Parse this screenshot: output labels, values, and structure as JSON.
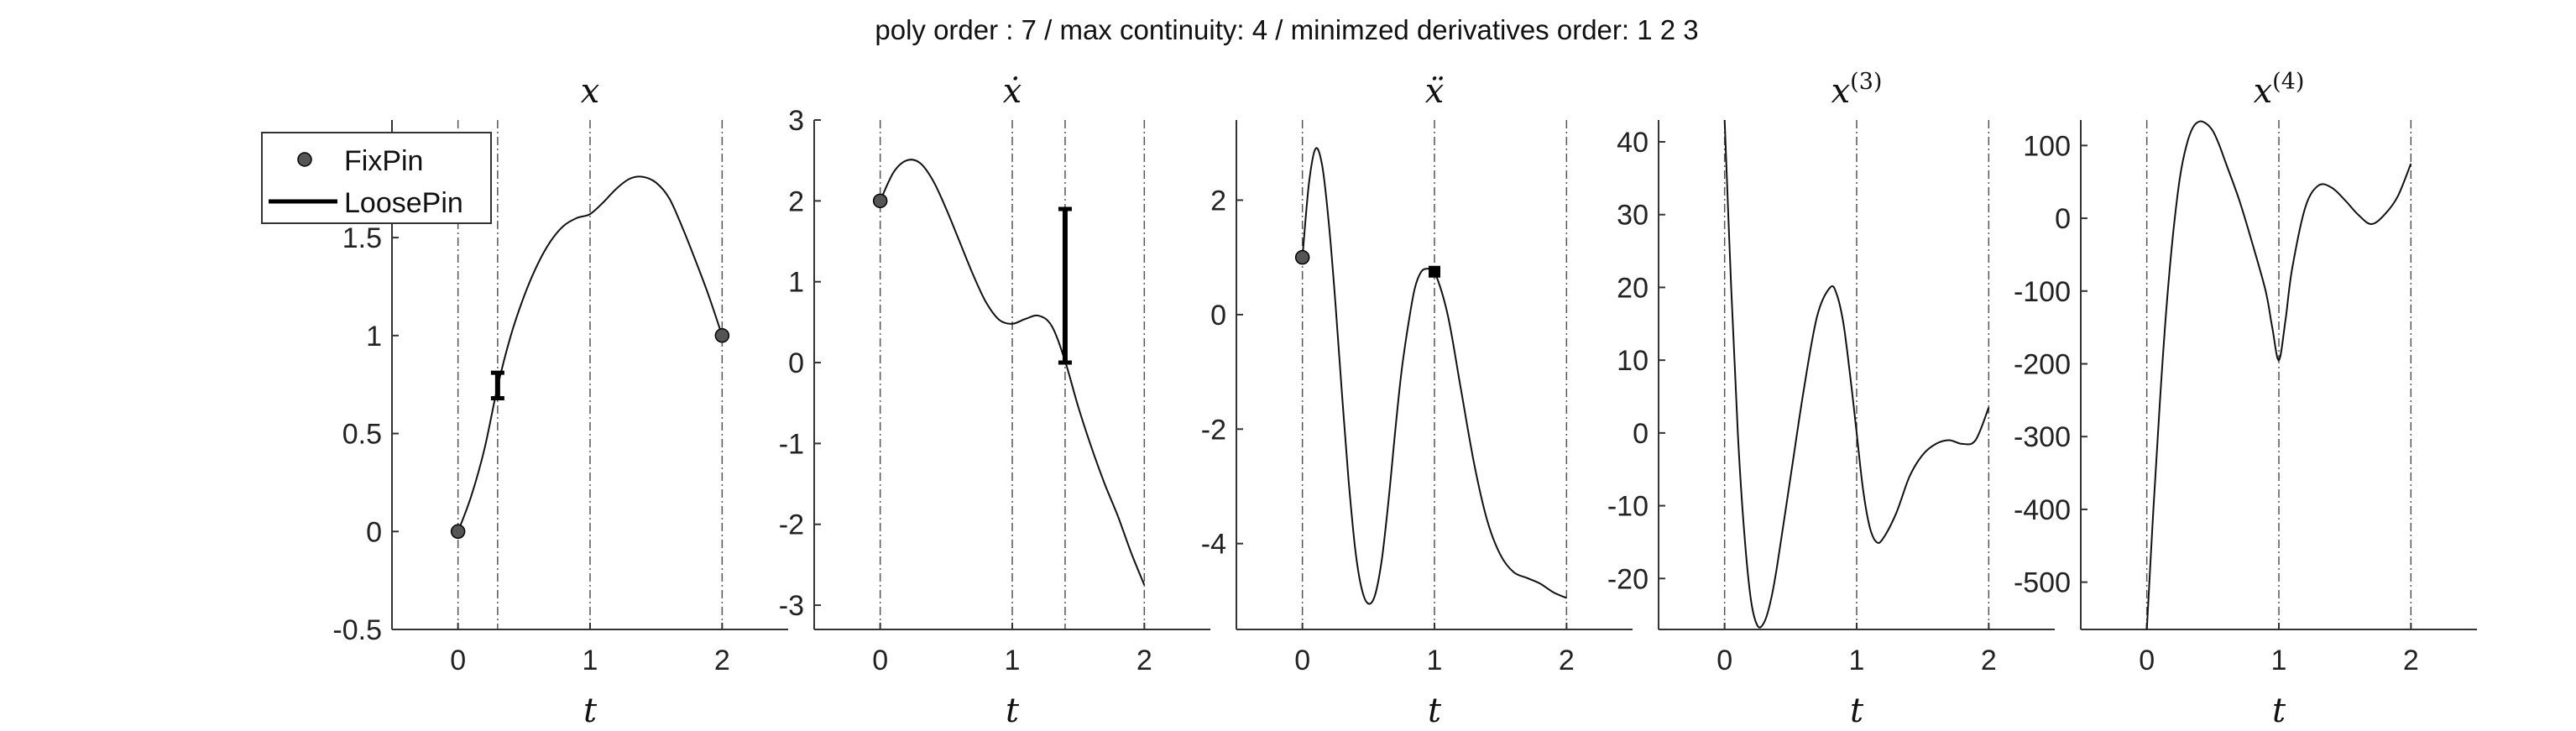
{
  "suptitle": "poly order : 7 / max continuity: 4 / minimzed derivatives order: 1  2  3",
  "legend": {
    "fixpin": "FixPin",
    "loosepin": "LoosePin"
  },
  "chart_data": [
    {
      "type": "line",
      "title": "x",
      "xlabel": "t",
      "xlim": [
        -0.5,
        2.5
      ],
      "ylim": [
        -0.5,
        2.1
      ],
      "xticks": [
        "0",
        "1",
        "2"
      ],
      "xtick_values": [
        0,
        1,
        2
      ],
      "yticks": [
        "-0.5",
        "0",
        "0.5",
        "1",
        "1.5"
      ],
      "ytick_values": [
        -0.5,
        0,
        0.5,
        1,
        1.5
      ],
      "vlines": [
        0,
        0.3,
        1,
        2
      ],
      "curve": {
        "x": [
          0,
          0.1,
          0.2,
          0.3,
          0.4,
          0.5,
          0.6,
          0.7,
          0.8,
          0.9,
          1.0,
          1.1,
          1.2,
          1.3,
          1.4,
          1.5,
          1.6,
          1.7,
          1.8,
          1.9,
          2.0
        ],
        "y": [
          0,
          0.18,
          0.42,
          0.74,
          1.0,
          1.2,
          1.36,
          1.48,
          1.56,
          1.6,
          1.62,
          1.68,
          1.75,
          1.8,
          1.81,
          1.78,
          1.7,
          1.55,
          1.38,
          1.2,
          1.0
        ]
      },
      "fixpins": [
        {
          "x": 0,
          "y": 0
        },
        {
          "x": 2,
          "y": 1
        }
      ],
      "loosepins": [
        {
          "x": 0.3,
          "ymin": 0.68,
          "ymax": 0.81
        }
      ]
    },
    {
      "type": "line",
      "title": "ẋ",
      "xlabel": "t",
      "xlim": [
        -0.5,
        2.5
      ],
      "ylim": [
        -3.3,
        3.0
      ],
      "xticks": [
        "0",
        "1",
        "2"
      ],
      "xtick_values": [
        0,
        1,
        2
      ],
      "yticks": [
        "-3",
        "-2",
        "-1",
        "0",
        "1",
        "2",
        "3"
      ],
      "ytick_values": [
        -3,
        -2,
        -1,
        0,
        1,
        2,
        3
      ],
      "vlines": [
        0,
        1,
        1.4,
        2
      ],
      "curve": {
        "x": [
          0,
          0.1,
          0.2,
          0.3,
          0.4,
          0.5,
          0.6,
          0.7,
          0.8,
          0.9,
          1.0,
          1.1,
          1.2,
          1.3,
          1.4,
          1.5,
          1.6,
          1.7,
          1.8,
          1.9,
          2.0
        ],
        "y": [
          2.0,
          2.35,
          2.5,
          2.47,
          2.25,
          1.9,
          1.5,
          1.1,
          0.75,
          0.53,
          0.48,
          0.54,
          0.58,
          0.45,
          0.02,
          -0.55,
          -1.05,
          -1.5,
          -1.9,
          -2.35,
          -2.75
        ]
      },
      "fixpins": [
        {
          "x": 0,
          "y": 2
        }
      ],
      "loosepins": [
        {
          "x": 1.4,
          "ymin": 0.0,
          "ymax": 1.9
        }
      ]
    },
    {
      "type": "line",
      "title": "ẍ",
      "xlabel": "t",
      "xlim": [
        -0.5,
        2.5
      ],
      "ylim": [
        -5.5,
        3.4
      ],
      "xticks": [
        "0",
        "1",
        "2"
      ],
      "xtick_values": [
        0,
        1,
        2
      ],
      "yticks": [
        "-4",
        "-2",
        "0",
        "2"
      ],
      "ytick_values": [
        -4,
        -2,
        0,
        2
      ],
      "vlines": [
        0,
        1,
        2
      ],
      "curve": {
        "x": [
          0,
          0.05,
          0.1,
          0.15,
          0.2,
          0.25,
          0.3,
          0.35,
          0.4,
          0.45,
          0.5,
          0.55,
          0.6,
          0.65,
          0.7,
          0.75,
          0.8,
          0.85,
          0.9,
          0.95,
          1.0,
          1.1,
          1.2,
          1.3,
          1.4,
          1.5,
          1.6,
          1.7,
          1.8,
          1.9,
          2.0
        ],
        "y": [
          1.0,
          2.3,
          2.9,
          2.6,
          1.6,
          0.2,
          -1.4,
          -2.9,
          -4.1,
          -4.8,
          -5.05,
          -4.9,
          -4.3,
          -3.3,
          -2.1,
          -1.0,
          -0.2,
          0.45,
          0.75,
          0.8,
          0.75,
          0.0,
          -1.3,
          -2.6,
          -3.6,
          -4.2,
          -4.5,
          -4.6,
          -4.7,
          -4.85,
          -4.95
        ]
      },
      "fixpins": [
        {
          "x": 0,
          "y": 1
        }
      ],
      "squarepins": [
        {
          "x": 1,
          "y": 0.75
        }
      ]
    },
    {
      "type": "line",
      "title": "x",
      "title_sup": "(3)",
      "xlabel": "t",
      "xlim": [
        -0.5,
        2.5
      ],
      "ylim": [
        -27,
        43
      ],
      "xticks": [
        "0",
        "1",
        "2"
      ],
      "xtick_values": [
        0,
        1,
        2
      ],
      "yticks": [
        "-20",
        "-10",
        "0",
        "10",
        "20",
        "30",
        "40"
      ],
      "ytick_values": [
        -20,
        -10,
        0,
        10,
        20,
        30,
        40
      ],
      "vlines": [
        0,
        1,
        2
      ],
      "curve": {
        "x": [
          0,
          0.05,
          0.1,
          0.15,
          0.2,
          0.25,
          0.3,
          0.35,
          0.4,
          0.5,
          0.6,
          0.7,
          0.8,
          0.85,
          0.9,
          0.95,
          1.0,
          1.05,
          1.1,
          1.15,
          1.2,
          1.3,
          1.4,
          1.5,
          1.6,
          1.7,
          1.8,
          1.9,
          2.0
        ],
        "y": [
          43,
          20,
          0,
          -14,
          -23,
          -26.5,
          -26,
          -23,
          -18,
          -6,
          6,
          16,
          20,
          19,
          15,
          8,
          0,
          -8,
          -13,
          -15,
          -14.5,
          -11,
          -6,
          -3,
          -1.5,
          -1,
          -1.5,
          -1,
          3.5
        ]
      }
    },
    {
      "type": "line",
      "title": "x",
      "title_sup": "(4)",
      "xlabel": "t",
      "xlim": [
        -0.5,
        2.5
      ],
      "ylim": [
        -565,
        135
      ],
      "xticks": [
        "0",
        "1",
        "2"
      ],
      "xtick_values": [
        0,
        1,
        2
      ],
      "yticks": [
        "-500",
        "-400",
        "-300",
        "-200",
        "-100",
        "0",
        "100"
      ],
      "ytick_values": [
        -500,
        -400,
        -300,
        -200,
        -100,
        0,
        100
      ],
      "vlines": [
        0,
        1,
        2
      ],
      "curve": {
        "x": [
          0,
          0.05,
          0.1,
          0.15,
          0.2,
          0.25,
          0.3,
          0.35,
          0.4,
          0.45,
          0.5,
          0.55,
          0.6,
          0.7,
          0.8,
          0.9,
          0.95,
          1.0,
          1.05,
          1.1,
          1.2,
          1.3,
          1.4,
          1.5,
          1.6,
          1.7,
          1.8,
          1.9,
          2.0
        ],
        "y": [
          -565,
          -400,
          -250,
          -120,
          -20,
          55,
          100,
          125,
          133,
          130,
          120,
          100,
          75,
          25,
          -35,
          -100,
          -150,
          -195,
          -140,
          -70,
          15,
          45,
          42,
          25,
          5,
          -8,
          5,
          30,
          75
        ]
      }
    }
  ]
}
